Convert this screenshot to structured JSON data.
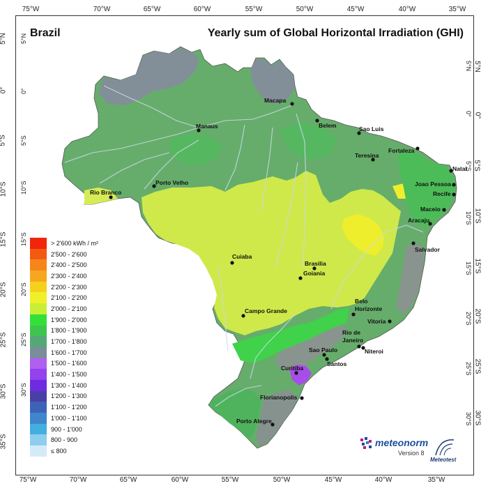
{
  "title": {
    "country": "Brazil",
    "main": "Yearly sum of Global Horizontal Irradiation (GHI)"
  },
  "axes": {
    "top_lon": [
      "75°W",
      "70°W",
      "65°W",
      "60°W",
      "55°W",
      "50°W",
      "45°W",
      "40°W",
      "35°W"
    ],
    "bottom_lon": [
      "75°W",
      "70°W",
      "65°W",
      "60°W",
      "55°W",
      "50°W",
      "45°W",
      "40°W",
      "35°W"
    ],
    "left_lat": [
      "5°N",
      "0°",
      "5°S",
      "10°S",
      "15°S",
      "20°S",
      "25°S",
      "30°S",
      "35°S"
    ],
    "right_lat": [
      "5°N",
      "0°",
      "5°S",
      "10°S",
      "15°S",
      "20°S",
      "25°S",
      "30°S"
    ],
    "inner_top_lat": [
      "5°N",
      "0°",
      "5°S",
      "10°S",
      "15°S",
      "20°S",
      "25°S",
      "30°S"
    ],
    "inner_lon": [
      "75°W",
      "70°W",
      "65°W",
      "60°W",
      "55°W",
      "50°W",
      "45°W",
      "40°W",
      "35°W"
    ]
  },
  "cities": [
    {
      "name": "Macapa"
    },
    {
      "name": "Belem"
    },
    {
      "name": "Manaus"
    },
    {
      "name": "Sao Luis"
    },
    {
      "name": "Fortaleza"
    },
    {
      "name": "Teresina"
    },
    {
      "name": "Natal"
    },
    {
      "name": "Joao Pessoa"
    },
    {
      "name": "Recife"
    },
    {
      "name": "Rio Branco"
    },
    {
      "name": "Porto Velho"
    },
    {
      "name": "Maceio"
    },
    {
      "name": "Aracaju"
    },
    {
      "name": "Salvador"
    },
    {
      "name": "Cuiaba"
    },
    {
      "name": "Brasilia"
    },
    {
      "name": "Goiania"
    },
    {
      "name": "Belo"
    },
    {
      "name": "Horizonte"
    },
    {
      "name": "Campo Grande"
    },
    {
      "name": "Vitoria"
    },
    {
      "name": "Rio de"
    },
    {
      "name": "Janeiro"
    },
    {
      "name": "Niteroi"
    },
    {
      "name": "Sao Paulo"
    },
    {
      "name": "Santos"
    },
    {
      "name": "Curitiba"
    },
    {
      "name": "Florianopolis"
    },
    {
      "name": "Porto Alegre"
    }
  ],
  "legend": {
    "title": "> 2'600 kWh / m²",
    "items": [
      {
        "label": "2'500 - 2'600",
        "color": "#f25a10"
      },
      {
        "label": "2'400 - 2'500",
        "color": "#f7851a"
      },
      {
        "label": "2'300 - 2'400",
        "color": "#f5a81f"
      },
      {
        "label": "2'200 - 2'300",
        "color": "#f5d11d"
      },
      {
        "label": "2'100 - 2'200",
        "color": "#f0f02a"
      },
      {
        "label": "2'000 - 2'100",
        "color": "#c8ee36"
      },
      {
        "label": "1'900 - 2'000",
        "color": "#33e03a"
      },
      {
        "label": "1'800 - 1'900",
        "color": "#3fc54f"
      },
      {
        "label": "1'700 - 1'800",
        "color": "#55a875"
      },
      {
        "label": "1'600 - 1'700",
        "color": "#7b8c9a"
      },
      {
        "label": "1'500 - 1'600",
        "color": "#b05ff0"
      },
      {
        "label": "1'400 - 1'500",
        "color": "#9441ee"
      },
      {
        "label": "1'300 - 1'400",
        "color": "#6e2ce0"
      },
      {
        "label": "1'200 - 1'300",
        "color": "#4a3fa5"
      },
      {
        "label": "1'100 - 1'200",
        "color": "#3d62b8"
      },
      {
        "label": "1'000 - 1'100",
        "color": "#3f86cc"
      },
      {
        "label": "900 - 1'000",
        "color": "#43aee0"
      },
      {
        "label": "800 - 900",
        "color": "#8fcdee"
      },
      {
        "label": "≤ 800",
        "color": "#d4ebf7"
      }
    ],
    "top_color": "#f2240c"
  },
  "logo": {
    "name": "meteonorm",
    "version": "Version 8",
    "company": "Meteotest"
  },
  "colors": {
    "amazon": "#6aa86a",
    "central": "#d4ea4a",
    "coast_gray": "#8a9a92",
    "south": "#5cb56a"
  }
}
